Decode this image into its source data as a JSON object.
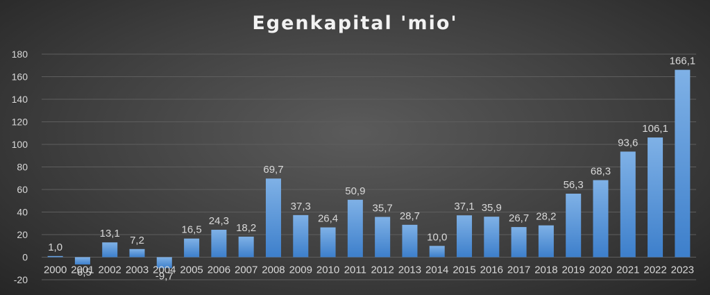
{
  "chart_data": {
    "type": "bar",
    "title": "Egenkapital 'mio'",
    "xlabel": "",
    "ylabel": "",
    "categories": [
      "2000",
      "2001",
      "2002",
      "2003",
      "2004",
      "2005",
      "2006",
      "2007",
      "2008",
      "2009",
      "2010",
      "2011",
      "2012",
      "2013",
      "2014",
      "2015",
      "2016",
      "2017",
      "2018",
      "2019",
      "2020",
      "2021",
      "2022",
      "2023"
    ],
    "values": [
      1.0,
      -6.5,
      13.1,
      7.2,
      -9.7,
      16.5,
      24.3,
      18.2,
      69.7,
      37.3,
      26.4,
      50.9,
      35.7,
      28.7,
      10.0,
      37.1,
      35.9,
      26.7,
      28.2,
      56.3,
      68.3,
      93.6,
      106.1,
      166.1
    ],
    "data_labels": [
      "1,0",
      "-6,5",
      "13,1",
      "7,2",
      "-9,7",
      "16,5",
      "24,3",
      "18,2",
      "69,7",
      "37,3",
      "26,4",
      "50,9",
      "35,7",
      "28,7",
      "10,0",
      "37,1",
      "35,9",
      "26,7",
      "28,2",
      "56,3",
      "68,3",
      "93,6",
      "106,1",
      "166,1"
    ],
    "yticks": [
      -20,
      0,
      20,
      40,
      60,
      80,
      100,
      120,
      140,
      160,
      180
    ],
    "ylim": [
      -20,
      180
    ],
    "grid": true,
    "legend": "none",
    "colors": {
      "bar_top": "#7fb1e6",
      "bar_bottom": "#3d7fcb",
      "text": "#d9d9d9",
      "grid": "#5e5e5e"
    }
  }
}
